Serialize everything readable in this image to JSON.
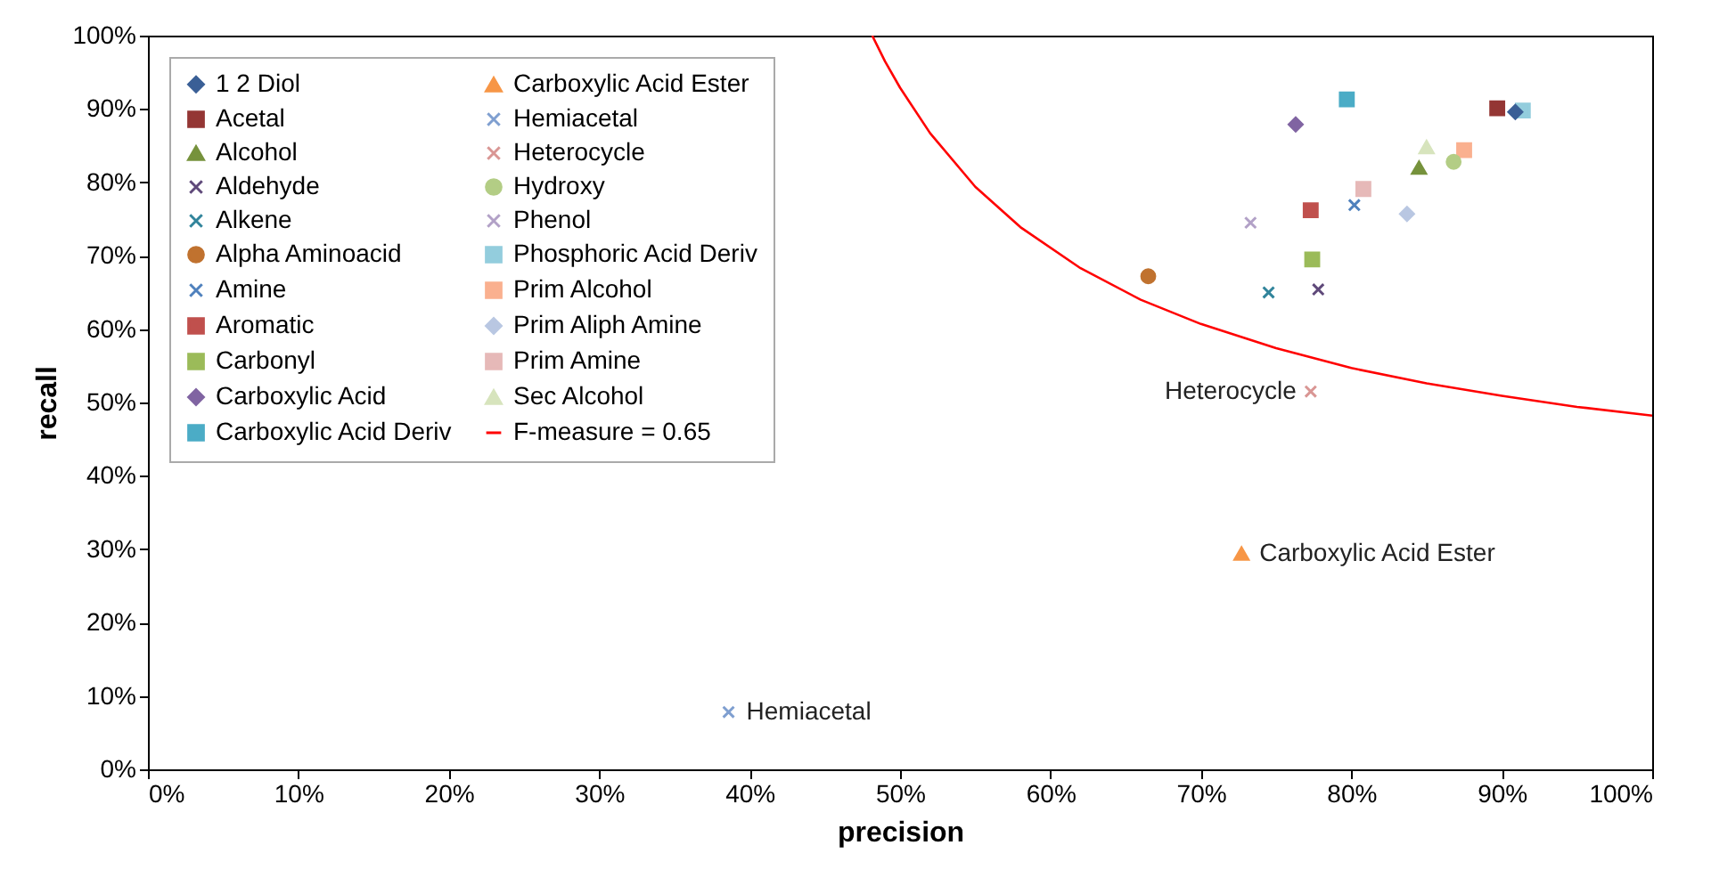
{
  "chart_data": {
    "type": "scatter",
    "xlabel": "precision",
    "ylabel": "recall",
    "xlim": [
      0,
      100
    ],
    "ylim": [
      0,
      100
    ],
    "xticks": [
      {
        "value": 0,
        "label": "0%"
      },
      {
        "value": 10,
        "label": "10%"
      },
      {
        "value": 20,
        "label": "20%"
      },
      {
        "value": 30,
        "label": "30%"
      },
      {
        "value": 40,
        "label": "40%"
      },
      {
        "value": 50,
        "label": "50%"
      },
      {
        "value": 60,
        "label": "60%"
      },
      {
        "value": 70,
        "label": "70%"
      },
      {
        "value": 80,
        "label": "80%"
      },
      {
        "value": 90,
        "label": "90%"
      },
      {
        "value": 100,
        "label": "100%"
      }
    ],
    "yticks": [
      {
        "value": 0,
        "label": "0%"
      },
      {
        "value": 10,
        "label": "10%"
      },
      {
        "value": 20,
        "label": "20%"
      },
      {
        "value": 30,
        "label": "30%"
      },
      {
        "value": 40,
        "label": "40%"
      },
      {
        "value": 50,
        "label": "50%"
      },
      {
        "value": 60,
        "label": "60%"
      },
      {
        "value": 70,
        "label": "70%"
      },
      {
        "value": 80,
        "label": "80%"
      },
      {
        "value": 90,
        "label": "90%"
      },
      {
        "value": 100,
        "label": "100%"
      }
    ],
    "grid": false,
    "legend": "top left",
    "series": [
      {
        "name": "1 2 Diol",
        "color": "#3a5f96",
        "marker": "diamond",
        "x": [
          90.9
        ],
        "values": [
          89.6
        ]
      },
      {
        "name": "Acetal",
        "color": "#943634",
        "marker": "square",
        "x": [
          89.7
        ],
        "values": [
          90.1
        ]
      },
      {
        "name": "Alcohol",
        "color": "#76923c",
        "marker": "triangle",
        "x": [
          84.5
        ],
        "values": [
          82.0
        ]
      },
      {
        "name": "Aldehyde",
        "color": "#5f497a",
        "marker": "cross",
        "x": [
          77.8
        ],
        "values": [
          65.4
        ]
      },
      {
        "name": "Alkene",
        "color": "#31849b",
        "marker": "cross",
        "x": [
          74.5
        ],
        "values": [
          65.0
        ]
      },
      {
        "name": "Alpha Aminoacid",
        "color": "#c0722f",
        "marker": "circle",
        "x": [
          66.5
        ],
        "values": [
          67.2
        ]
      },
      {
        "name": "Amine",
        "color": "#4f81bd",
        "marker": "cross",
        "x": [
          80.2
        ],
        "values": [
          76.9
        ]
      },
      {
        "name": "Aromatic",
        "color": "#c0504d",
        "marker": "square",
        "x": [
          77.3
        ],
        "values": [
          76.2
        ]
      },
      {
        "name": "Carbonyl",
        "color": "#9bbb59",
        "marker": "square",
        "x": [
          77.4
        ],
        "values": [
          69.5
        ]
      },
      {
        "name": "Carboxylic Acid",
        "color": "#8064a2",
        "marker": "diamond",
        "x": [
          76.3
        ],
        "values": [
          87.9
        ]
      },
      {
        "name": "Carboxylic Acid Deriv",
        "color": "#4bacc6",
        "marker": "square",
        "x": [
          79.7
        ],
        "values": [
          91.3
        ]
      },
      {
        "name": "Carboxylic Acid Ester",
        "color": "#f79646",
        "marker": "triangle",
        "x": [
          72.7
        ],
        "values": [
          29.4
        ]
      },
      {
        "name": "Hemiacetal",
        "color": "#7f9fd0",
        "marker": "cross",
        "x": [
          38.6
        ],
        "values": [
          7.8
        ]
      },
      {
        "name": "Heterocycle",
        "color": "#d99694",
        "marker": "cross",
        "x": [
          77.3
        ],
        "values": [
          51.5
        ]
      },
      {
        "name": "Hydroxy",
        "color": "#b3cd85",
        "marker": "circle",
        "x": [
          86.8
        ],
        "values": [
          82.8
        ]
      },
      {
        "name": "Phenol",
        "color": "#b2a1c7",
        "marker": "cross",
        "x": [
          73.3
        ],
        "values": [
          74.5
        ]
      },
      {
        "name": "Phosphoric Acid Deriv",
        "color": "#93cddd",
        "marker": "square",
        "x": [
          91.4
        ],
        "values": [
          89.8
        ]
      },
      {
        "name": "Prim Alcohol",
        "color": "#fab08f",
        "marker": "square",
        "x": [
          87.5
        ],
        "values": [
          84.4
        ]
      },
      {
        "name": "Prim Aliph Amine",
        "color": "#b9c7e2",
        "marker": "diamond",
        "x": [
          83.7
        ],
        "values": [
          75.7
        ]
      },
      {
        "name": "Prim Amine",
        "color": "#e6b9b8",
        "marker": "square",
        "x": [
          80.8
        ],
        "values": [
          79.1
        ]
      },
      {
        "name": "Sec Alcohol",
        "color": "#d7e4bd",
        "marker": "triangle",
        "x": [
          85.0
        ],
        "values": [
          84.8
        ]
      },
      {
        "name": "F-measure = 0.65",
        "color": "#ff0000",
        "type": "line",
        "marker": "none",
        "x": [
          48.15,
          49,
          50,
          52,
          55,
          58,
          62,
          66,
          70,
          75,
          80,
          85,
          90,
          95,
          100
        ],
        "values": [
          100,
          96.5,
          92.9,
          86.7,
          79.4,
          73.9,
          68.3,
          64.0,
          60.7,
          57.4,
          54.7,
          52.6,
          50.9,
          49.4,
          48.2
        ]
      }
    ],
    "annotations": [
      {
        "text": "Heterocycle",
        "x": 77.3,
        "y": 51.5
      },
      {
        "text": "Carboxylic Acid Ester",
        "x": 72.7,
        "y": 29.4
      },
      {
        "text": "Hemiacetal",
        "x": 38.6,
        "y": 7.8
      }
    ]
  }
}
